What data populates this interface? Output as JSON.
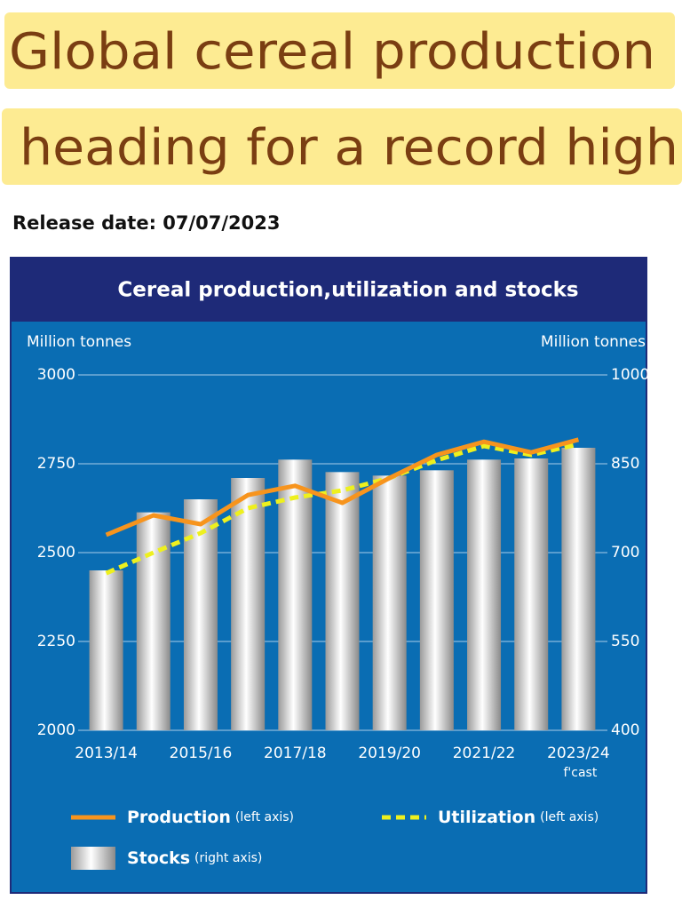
{
  "header": {
    "title_lines": [
      "Global cereal production",
      "heading for a record high"
    ],
    "release_date": "Release date: 07/07/2023"
  },
  "chart_data": {
    "type": "bar-line",
    "title": "Cereal production,utilization and stocks",
    "y_label": "Million tonnes",
    "y2_label": "Million tonnes",
    "categories": [
      "2013/14",
      null,
      "2015/16",
      null,
      "2017/18",
      null,
      "2019/20",
      null,
      "2021/22",
      null,
      "2023/24"
    ],
    "category_notes": [
      null,
      null,
      null,
      null,
      null,
      null,
      null,
      null,
      null,
      null,
      "f'cast"
    ],
    "ylim": [
      2000,
      3000
    ],
    "yticks": [
      2000,
      2250,
      2500,
      2750,
      3000
    ],
    "y2lim": [
      400,
      1000
    ],
    "y2ticks": [
      400,
      550,
      700,
      850,
      1000
    ],
    "grid": true,
    "series": [
      {
        "name": "Production",
        "note": "(left axis)",
        "kind": "line",
        "color": "#f7941d",
        "values": [
          2550,
          2605,
          2580,
          2662,
          2688,
          2640,
          2710,
          2775,
          2812,
          2782,
          2818
        ]
      },
      {
        "name": "Utilization",
        "note": "(left axis)",
        "kind": "dashed-line",
        "color": "#eef01e",
        "values": [
          2442,
          2500,
          2555,
          2625,
          2655,
          2675,
          2710,
          2760,
          2800,
          2775,
          2805
        ]
      },
      {
        "name": "Stocks",
        "note": "(right axis)",
        "kind": "bar",
        "axis": "y2",
        "color": "#c8c8c8",
        "values": [
          670,
          768,
          790,
          826,
          857,
          836,
          830,
          839,
          857,
          859,
          877
        ]
      }
    ]
  }
}
